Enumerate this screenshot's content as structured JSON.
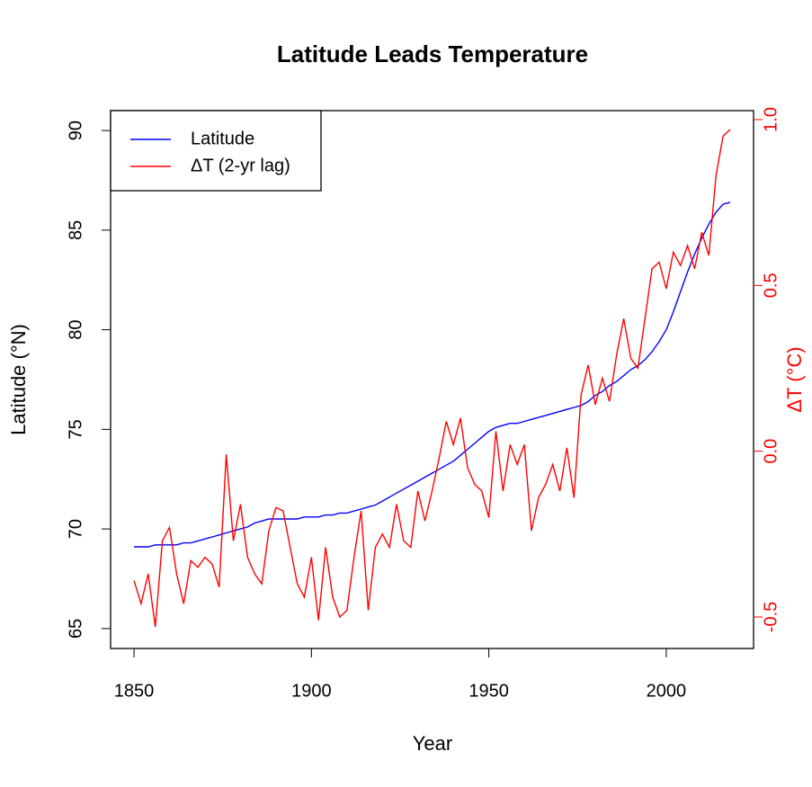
{
  "chart_data": {
    "type": "line",
    "title": "Latitude Leads Temperature",
    "x_label": "Year",
    "y_label": "Latitude (°N)",
    "y2_label": "ΔT (°C)",
    "x": [
      1850,
      1852,
      1854,
      1856,
      1858,
      1860,
      1862,
      1864,
      1866,
      1868,
      1870,
      1872,
      1874,
      1876,
      1878,
      1880,
      1882,
      1884,
      1886,
      1888,
      1890,
      1892,
      1894,
      1896,
      1898,
      1900,
      1902,
      1904,
      1906,
      1908,
      1910,
      1912,
      1914,
      1916,
      1918,
      1920,
      1922,
      1924,
      1926,
      1928,
      1930,
      1932,
      1934,
      1936,
      1938,
      1940,
      1942,
      1944,
      1946,
      1948,
      1950,
      1952,
      1954,
      1956,
      1958,
      1960,
      1962,
      1964,
      1966,
      1968,
      1970,
      1972,
      1974,
      1976,
      1978,
      1980,
      1982,
      1984,
      1986,
      1988,
      1990,
      1992,
      1994,
      1996,
      1998,
      2000,
      2002,
      2004,
      2006,
      2008,
      2010,
      2012,
      2014,
      2016,
      2018
    ],
    "series": [
      {
        "name": "Latitude",
        "color": "#0000ff",
        "axis": "y",
        "values": [
          69.1,
          69.1,
          69.1,
          69.2,
          69.2,
          69.2,
          69.2,
          69.3,
          69.3,
          69.4,
          69.5,
          69.6,
          69.7,
          69.8,
          69.9,
          70.0,
          70.1,
          70.3,
          70.4,
          70.5,
          70.5,
          70.5,
          70.5,
          70.5,
          70.6,
          70.6,
          70.6,
          70.7,
          70.7,
          70.8,
          70.8,
          70.9,
          71.0,
          71.1,
          71.2,
          71.4,
          71.6,
          71.8,
          72.0,
          72.2,
          72.4,
          72.6,
          72.8,
          73.0,
          73.2,
          73.4,
          73.7,
          74.0,
          74.3,
          74.6,
          74.9,
          75.1,
          75.2,
          75.3,
          75.3,
          75.4,
          75.5,
          75.6,
          75.7,
          75.8,
          75.9,
          76.0,
          76.1,
          76.2,
          76.4,
          76.7,
          76.9,
          77.2,
          77.4,
          77.7,
          78.0,
          78.2,
          78.5,
          78.9,
          79.4,
          80.0,
          80.9,
          81.9,
          82.9,
          83.8,
          84.6,
          85.3,
          85.9,
          86.3,
          86.4
        ]
      },
      {
        "name": "ΔT (2-yr lag)",
        "color": "#ff0000",
        "axis": "y2",
        "values": [
          -0.39,
          -0.46,
          -0.37,
          -0.53,
          -0.27,
          -0.23,
          -0.37,
          -0.46,
          -0.33,
          -0.35,
          -0.32,
          -0.34,
          -0.41,
          -0.01,
          -0.27,
          -0.16,
          -0.32,
          -0.37,
          -0.4,
          -0.24,
          -0.17,
          -0.18,
          -0.29,
          -0.4,
          -0.44,
          -0.32,
          -0.51,
          -0.29,
          -0.44,
          -0.5,
          -0.48,
          -0.32,
          -0.18,
          -0.48,
          -0.29,
          -0.25,
          -0.29,
          -0.16,
          -0.27,
          -0.29,
          -0.12,
          -0.21,
          -0.12,
          -0.02,
          0.09,
          0.02,
          0.1,
          -0.05,
          -0.1,
          -0.12,
          -0.2,
          0.06,
          -0.12,
          0.02,
          -0.04,
          0.02,
          -0.24,
          -0.14,
          -0.1,
          -0.04,
          -0.12,
          0.01,
          -0.14,
          0.17,
          0.26,
          0.14,
          0.22,
          0.15,
          0.29,
          0.4,
          0.28,
          0.25,
          0.4,
          0.55,
          0.57,
          0.49,
          0.6,
          0.56,
          0.62,
          0.55,
          0.66,
          0.59,
          0.83,
          0.95,
          0.97
        ]
      }
    ],
    "xlim": [
      1843.4,
      2024.6
    ],
    "xticks": [
      1850,
      1900,
      1950,
      2000
    ],
    "ylim": [
      64.0,
      91.0
    ],
    "yticks": [
      65,
      70,
      75,
      80,
      85,
      90
    ],
    "y2lim": [
      -0.595,
      1.027
    ],
    "y2ticks": [
      -0.5,
      {
        "value": 0,
        "label": "0.0"
      },
      0.5,
      {
        "value": 1,
        "label": "1.0"
      }
    ],
    "y2_color": "#ff0000",
    "legend": "top-left"
  }
}
